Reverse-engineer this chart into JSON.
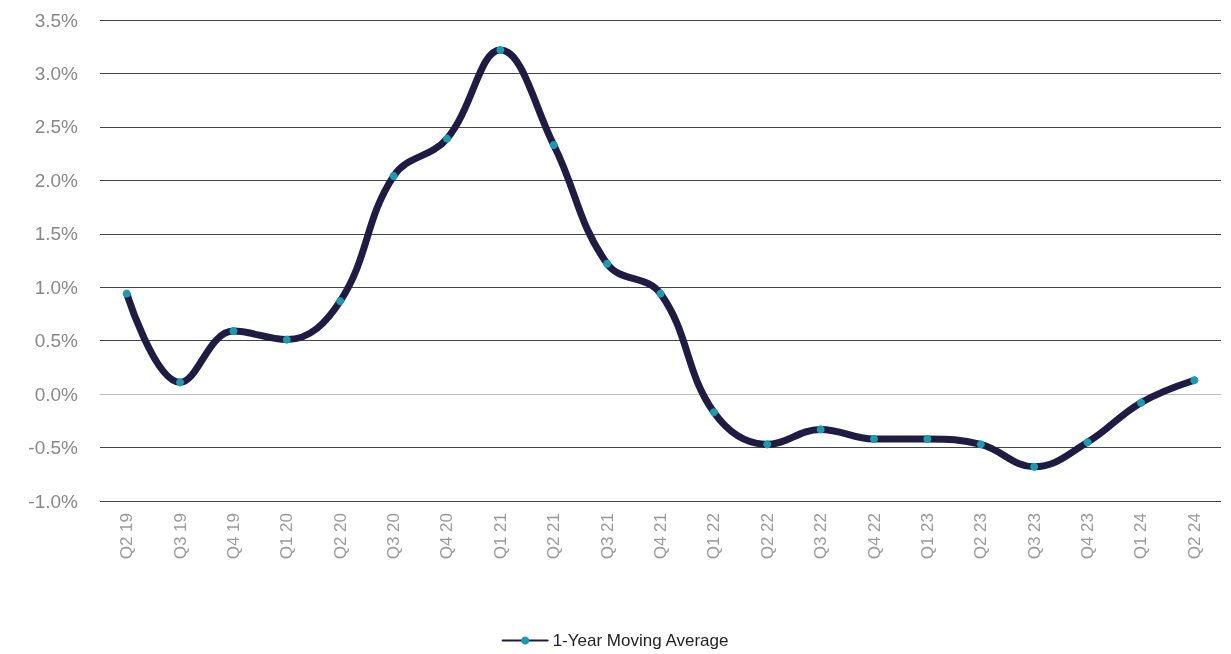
{
  "chart_data": {
    "type": "line",
    "categories": [
      "Q2 19",
      "Q3 19",
      "Q4 19",
      "Q1 20",
      "Q2 20",
      "Q3 20",
      "Q4 20",
      "Q1 21",
      "Q2 21",
      "Q3 21",
      "Q4 21",
      "Q1 22",
      "Q2 22",
      "Q3 22",
      "Q4 22",
      "Q1 23",
      "Q2 23",
      "Q3 23",
      "Q4 23",
      "Q1 24",
      "Q2 24"
    ],
    "series": [
      {
        "name": "1-Year Moving Average",
        "color": "#1f1b42",
        "colors": [
          "#1a9bb0",
          "#1a9bb0",
          "#1a9bb0",
          "#1a9bb0",
          "#1a9bb0",
          "#1a9bb0",
          "#1a9bb0",
          "#1a9bb0",
          "#1a9bb0",
          "#1a9bb0",
          "#1a9bb0",
          "#1a9bb0",
          "#1a9bb0",
          "#1a9bb0",
          "#1a9bb0",
          "#1a9bb0",
          "#1a9bb0",
          "#1a9bb0",
          "#1a9bb0",
          "#1a9bb0",
          "#1a9bb0"
        ],
        "values": [
          0.94,
          0.11,
          0.59,
          0.51,
          0.87,
          2.04,
          2.39,
          3.22,
          2.33,
          1.22,
          0.94,
          -0.17,
          -0.47,
          -0.33,
          -0.42,
          -0.42,
          -0.47,
          -0.68,
          -0.45,
          -0.08,
          0.13
        ]
      }
    ],
    "ylim": [
      -1.0,
      3.5
    ],
    "yticks": [
      {
        "value": -1.0,
        "label": "-1.0%"
      },
      {
        "value": -0.5,
        "label": "-0.5%"
      },
      {
        "value": 0,
        "label": "0.0%"
      },
      {
        "value": 0.5,
        "label": "0.5%"
      },
      {
        "value": 1.0,
        "label": "1.0%"
      },
      {
        "value": 1.5,
        "label": "1.5%"
      },
      {
        "value": 2.0,
        "label": "2.0%"
      },
      {
        "value": 2.5,
        "label": "2.5%"
      },
      {
        "value": 3.0,
        "label": "3.0%"
      },
      {
        "value": 3.5,
        "label": "3.5%"
      }
    ],
    "grid": "y",
    "legend": "bottom",
    "marker": "circle",
    "line_style": "solid"
  }
}
